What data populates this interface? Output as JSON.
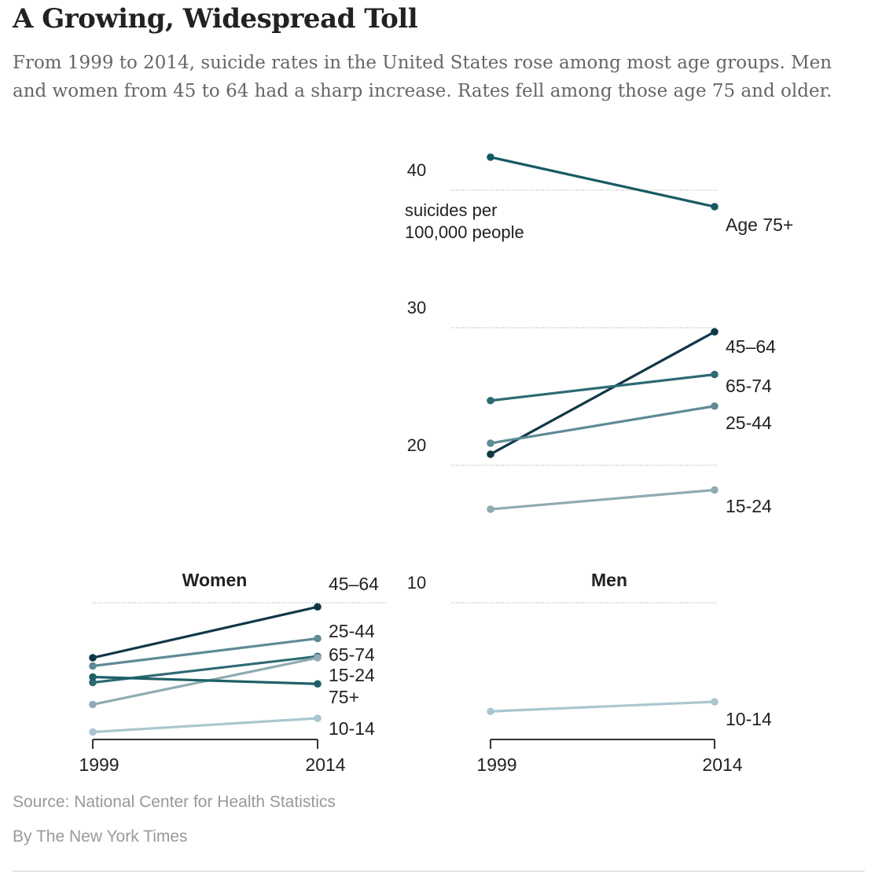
{
  "headline": "A Growing, Widespread Toll",
  "subhead": "From 1999 to 2014, suicide rates in the United States rose among most age groups. Men and women from 45 to 64 had a sharp increase. Rates fell among those age 75 and older.",
  "source": "Source: National Center for Health Statistics",
  "credit": "By The New York Times",
  "chart_data": [
    {
      "type": "line",
      "title": "Women",
      "x": [
        "1999",
        "2014"
      ],
      "yticks": [
        10
      ],
      "ylim": [
        0,
        45
      ],
      "grid": true,
      "series": [
        {
          "name": "45–64",
          "values": [
            6.0,
            9.7
          ],
          "color": "#0f3846"
        },
        {
          "name": "25-44",
          "values": [
            5.4,
            7.4
          ],
          "color": "#5e8b95"
        },
        {
          "name": "65-74",
          "values": [
            4.2,
            6.1
          ],
          "color": "#2e6a74"
        },
        {
          "name": "15-24",
          "values": [
            2.6,
            6.0
          ],
          "color": "#8fabb2"
        },
        {
          "name": "75+",
          "values": [
            4.6,
            4.1
          ],
          "color": "#1d5f67"
        },
        {
          "name": "10-14",
          "values": [
            0.6,
            1.6
          ],
          "color": "#a9c7d0"
        }
      ]
    },
    {
      "type": "line",
      "title": "Men",
      "x": [
        "1999",
        "2014"
      ],
      "yticks": [
        40,
        30,
        20,
        10
      ],
      "ylabel": "suicides per 100,000 people",
      "ylim": [
        0,
        45
      ],
      "grid": true,
      "series": [
        {
          "name": "Age 75+",
          "values": [
            42.4,
            38.8
          ],
          "color": "#165a63"
        },
        {
          "name": "45–64",
          "values": [
            20.8,
            29.7
          ],
          "color": "#0f3846"
        },
        {
          "name": "65-74",
          "values": [
            24.7,
            26.6
          ],
          "color": "#2e6a74"
        },
        {
          "name": "25-44",
          "values": [
            21.6,
            24.3
          ],
          "color": "#5e8b95"
        },
        {
          "name": "15-24",
          "values": [
            16.8,
            18.2
          ],
          "color": "#8fabb2"
        },
        {
          "name": "10-14",
          "values": [
            2.1,
            2.8
          ],
          "color": "#a9c7d0"
        }
      ]
    }
  ]
}
